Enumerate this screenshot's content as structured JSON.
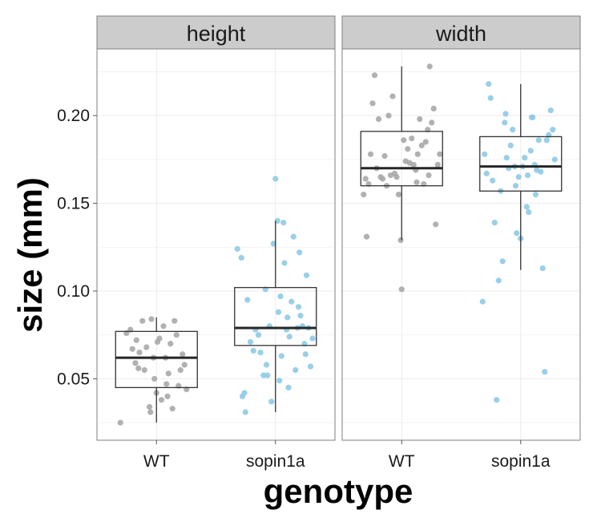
{
  "chart_data": {
    "type": "boxplot",
    "facets": [
      "height",
      "width"
    ],
    "categories": [
      "WT",
      "sopin1a"
    ],
    "xlabel": "genotype",
    "ylabel": "size (mm)",
    "ylim": [
      0.015,
      0.238
    ],
    "yticks": [
      0.05,
      0.1,
      0.15,
      0.2
    ],
    "ytick_labels": [
      "0.05",
      "0.10",
      "0.15",
      "0.20"
    ],
    "grid": true,
    "colors": {
      "WT": "#a8a8a8",
      "sopin1a": "#8ecae6",
      "strip": "#cccccc",
      "panel_border": "#7f7f7f",
      "grid": "#ebebeb",
      "box": "#333333"
    },
    "panels": [
      {
        "facet": "height",
        "groups": [
          {
            "category": "WT",
            "box": {
              "whisker_low": 0.025,
              "q1": 0.045,
              "median": 0.062,
              "q3": 0.077,
              "whisker_high": 0.085
            },
            "points": [
              [
                -0.36,
                0.025
              ],
              [
                -0.3,
                0.076
              ],
              [
                -0.26,
                0.078
              ],
              [
                -0.24,
                0.067
              ],
              [
                -0.21,
                0.059
              ],
              [
                -0.2,
                0.072
              ],
              [
                -0.17,
                0.065
              ],
              [
                -0.14,
                0.083
              ],
              [
                -0.12,
                0.055
              ],
              [
                -0.1,
                0.068
              ],
              [
                -0.07,
                0.034
              ],
              [
                -0.05,
                0.084
              ],
              [
                -0.03,
                0.062
              ],
              [
                -0.02,
                0.05
              ],
              [
                0.0,
                0.042
              ],
              [
                0.01,
                0.071
              ],
              [
                0.03,
                0.073
              ],
              [
                0.05,
                0.038
              ],
              [
                0.07,
                0.08
              ],
              [
                0.09,
                0.062
              ],
              [
                0.1,
                0.047
              ],
              [
                0.12,
                0.053
              ],
              [
                0.14,
                0.07
              ],
              [
                0.16,
                0.033
              ],
              [
                0.18,
                0.083
              ],
              [
                0.2,
                0.075
              ],
              [
                0.22,
                0.046
              ],
              [
                0.24,
                0.055
              ],
              [
                0.26,
                0.064
              ],
              [
                0.28,
                0.058
              ],
              [
                0.3,
                0.044
              ],
              [
                -0.06,
                0.031
              ],
              [
                0.11,
                0.04
              ],
              [
                -0.18,
                0.056
              ]
            ]
          },
          {
            "category": "sopin1a",
            "box": {
              "whisker_low": 0.031,
              "q1": 0.069,
              "median": 0.079,
              "q3": 0.102,
              "whisker_high": 0.14
            },
            "points": [
              [
                -0.38,
                0.124
              ],
              [
                -0.34,
                0.119
              ],
              [
                -0.33,
                0.04
              ],
              [
                -0.31,
                0.042
              ],
              [
                -0.3,
                0.031
              ],
              [
                -0.28,
                0.095
              ],
              [
                -0.25,
                0.071
              ],
              [
                -0.22,
                0.066
              ],
              [
                -0.2,
                0.078
              ],
              [
                -0.17,
                0.075
              ],
              [
                -0.15,
                0.065
              ],
              [
                -0.12,
                0.052
              ],
              [
                -0.1,
                0.101
              ],
              [
                -0.08,
                0.052
              ],
              [
                -0.06,
                0.08
              ],
              [
                -0.04,
                0.037
              ],
              [
                -0.02,
                0.127
              ],
              [
                0.0,
                0.164
              ],
              [
                0.02,
                0.14
              ],
              [
                0.03,
                0.088
              ],
              [
                0.05,
                0.097
              ],
              [
                0.06,
                0.063
              ],
              [
                0.08,
                0.139
              ],
              [
                0.09,
                0.116
              ],
              [
                0.11,
                0.078
              ],
              [
                0.12,
                0.085
              ],
              [
                0.14,
                0.074
              ],
              [
                0.16,
                0.094
              ],
              [
                0.18,
                0.131
              ],
              [
                0.2,
                0.055
              ],
              [
                0.22,
                0.079
              ],
              [
                0.23,
                0.091
              ],
              [
                0.25,
                0.086
              ],
              [
                0.27,
                0.08
              ],
              [
                0.29,
                0.07
              ],
              [
                0.31,
                0.109
              ],
              [
                0.33,
                0.079
              ],
              [
                0.35,
                0.057
              ],
              [
                0.37,
                0.073
              ],
              [
                0.04,
                0.049
              ],
              [
                -0.09,
                0.058
              ],
              [
                0.13,
                0.045
              ],
              [
                0.24,
                0.122
              ],
              [
                0.3,
                0.064
              ]
            ]
          }
        ]
      },
      {
        "facet": "width",
        "groups": [
          {
            "category": "WT",
            "box": {
              "whisker_low": 0.129,
              "q1": 0.16,
              "median": 0.17,
              "q3": 0.191,
              "whisker_high": 0.228
            },
            "points": [
              [
                -0.38,
                0.155
              ],
              [
                -0.35,
                0.131
              ],
              [
                -0.33,
                0.161
              ],
              [
                -0.31,
                0.178
              ],
              [
                -0.29,
                0.207
              ],
              [
                -0.27,
                0.223
              ],
              [
                -0.25,
                0.17
              ],
              [
                -0.23,
                0.198
              ],
              [
                -0.21,
                0.165
              ],
              [
                -0.19,
                0.164
              ],
              [
                -0.17,
                0.177
              ],
              [
                -0.15,
                0.16
              ],
              [
                -0.13,
                0.2
              ],
              [
                -0.11,
                0.166
              ],
              [
                -0.09,
                0.211
              ],
              [
                -0.07,
                0.167
              ],
              [
                -0.05,
                0.165
              ],
              [
                -0.03,
                0.155
              ],
              [
                -0.01,
                0.129
              ],
              [
                0.0,
                0.101
              ],
              [
                0.02,
                0.186
              ],
              [
                0.04,
                0.174
              ],
              [
                0.06,
                0.181
              ],
              [
                0.08,
                0.173
              ],
              [
                0.1,
                0.187
              ],
              [
                0.12,
                0.172
              ],
              [
                0.14,
                0.169
              ],
              [
                0.16,
                0.178
              ],
              [
                0.18,
                0.198
              ],
              [
                0.2,
                0.183
              ],
              [
                0.22,
                0.161
              ],
              [
                0.24,
                0.185
              ],
              [
                0.26,
                0.192
              ],
              [
                0.28,
                0.228
              ],
              [
                0.3,
                0.196
              ],
              [
                0.32,
                0.204
              ],
              [
                0.34,
                0.138
              ],
              [
                0.36,
                0.172
              ],
              [
                0.38,
                0.178
              ],
              [
                -0.36,
                0.164
              ],
              [
                0.15,
                0.162
              ],
              [
                0.27,
                0.166
              ]
            ]
          },
          {
            "category": "sopin1a",
            "box": {
              "whisker_low": 0.112,
              "q1": 0.157,
              "median": 0.171,
              "q3": 0.188,
              "whisker_high": 0.218
            },
            "points": [
              [
                -0.38,
                0.094
              ],
              [
                -0.36,
                0.178
              ],
              [
                -0.34,
                0.167
              ],
              [
                -0.32,
                0.218
              ],
              [
                -0.3,
                0.21
              ],
              [
                -0.28,
                0.163
              ],
              [
                -0.26,
                0.139
              ],
              [
                -0.24,
                0.038
              ],
              [
                -0.22,
                0.106
              ],
              [
                -0.2,
                0.157
              ],
              [
                -0.18,
                0.117
              ],
              [
                -0.16,
                0.196
              ],
              [
                -0.14,
                0.176
              ],
              [
                -0.12,
                0.17
              ],
              [
                -0.1,
                0.183
              ],
              [
                -0.08,
                0.192
              ],
              [
                -0.06,
                0.171
              ],
              [
                -0.04,
                0.133
              ],
              [
                -0.02,
                0.165
              ],
              [
                0.0,
                0.13
              ],
              [
                0.02,
                0.171
              ],
              [
                0.04,
                0.176
              ],
              [
                0.06,
                0.148
              ],
              [
                0.08,
                0.145
              ],
              [
                0.1,
                0.18
              ],
              [
                0.12,
                0.199
              ],
              [
                0.14,
                0.172
              ],
              [
                0.16,
                0.169
              ],
              [
                0.18,
                0.186
              ],
              [
                0.2,
                0.168
              ],
              [
                0.22,
                0.113
              ],
              [
                0.24,
                0.054
              ],
              [
                0.26,
                0.186
              ],
              [
                0.28,
                0.189
              ],
              [
                0.3,
                0.203
              ],
              [
                0.32,
                0.192
              ],
              [
                0.34,
                0.175
              ],
              [
                -0.05,
                0.16
              ],
              [
                0.07,
                0.166
              ],
              [
                0.15,
                0.155
              ],
              [
                0.11,
                0.199
              ],
              [
                -0.15,
                0.201
              ]
            ]
          }
        ]
      }
    ]
  }
}
